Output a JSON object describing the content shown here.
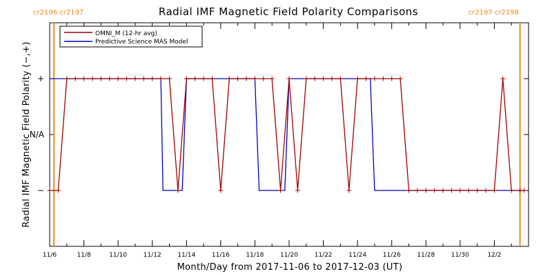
{
  "chart_data": {
    "type": "line",
    "title": "Radial IMF Magnetic Field Polarity Comparisons",
    "xlabel": "Month/Day from 2017-11-06 to 2017-12-03 (UT)",
    "ylabel": "Radial IMF Magnetic Field Polarity (−,+)",
    "x_range": [
      "2017-11-06T00:00",
      "2017-12-04T00:00"
    ],
    "ylim": [
      -2,
      2
    ],
    "x_tick_labels": [
      {
        "x": "2017-11-06T00:00",
        "label": "11/6"
      },
      {
        "x": "2017-11-08T00:00",
        "label": "11/8"
      },
      {
        "x": "2017-11-10T00:00",
        "label": "11/10"
      },
      {
        "x": "2017-11-12T00:00",
        "label": "11/12"
      },
      {
        "x": "2017-11-14T00:00",
        "label": "11/14"
      },
      {
        "x": "2017-11-16T00:00",
        "label": "11/16"
      },
      {
        "x": "2017-11-18T00:00",
        "label": "11/18"
      },
      {
        "x": "2017-11-20T00:00",
        "label": "11/20"
      },
      {
        "x": "2017-11-22T00:00",
        "label": "11/22"
      },
      {
        "x": "2017-11-24T00:00",
        "label": "11/24"
      },
      {
        "x": "2017-11-26T00:00",
        "label": "11/26"
      },
      {
        "x": "2017-11-28T00:00",
        "label": "11/28"
      },
      {
        "x": "2017-11-30T00:00",
        "label": "11/30"
      },
      {
        "x": "2017-12-02T00:00",
        "label": "12/2"
      }
    ],
    "y_tick_labels": [
      {
        "y": 1,
        "label": "+"
      },
      {
        "y": 0,
        "label": "N/A"
      },
      {
        "y": -1,
        "label": "−"
      }
    ],
    "carrington_markers": [
      {
        "x": "2017-11-06T06:00",
        "label": "cr2196 cr2197",
        "label_anchor": "left"
      },
      {
        "x": "2017-12-03T12:00",
        "label": "cr2197 cr2198",
        "label_anchor": "right"
      }
    ],
    "legend": {
      "position": "top-left"
    },
    "series": [
      {
        "name": "OMNI_M (12-hr avg)",
        "color": "#a00000",
        "marker": "plus",
        "points": [
          [
            "2017-11-06T00:00",
            -1
          ],
          [
            "2017-11-06T12:00",
            -1
          ],
          [
            "2017-11-07T00:00",
            1
          ],
          [
            "2017-11-07T12:00",
            1
          ],
          [
            "2017-11-08T00:00",
            1
          ],
          [
            "2017-11-08T12:00",
            1
          ],
          [
            "2017-11-09T00:00",
            1
          ],
          [
            "2017-11-09T12:00",
            1
          ],
          [
            "2017-11-10T00:00",
            1
          ],
          [
            "2017-11-10T12:00",
            1
          ],
          [
            "2017-11-11T00:00",
            1
          ],
          [
            "2017-11-11T12:00",
            1
          ],
          [
            "2017-11-12T00:00",
            1
          ],
          [
            "2017-11-12T12:00",
            1
          ],
          [
            "2017-11-13T00:00",
            1
          ],
          [
            "2017-11-13T12:00",
            -1
          ],
          [
            "2017-11-14T00:00",
            1
          ],
          [
            "2017-11-14T12:00",
            1
          ],
          [
            "2017-11-15T00:00",
            1
          ],
          [
            "2017-11-15T12:00",
            1
          ],
          [
            "2017-11-16T00:00",
            -1
          ],
          [
            "2017-11-16T12:00",
            1
          ],
          [
            "2017-11-17T00:00",
            1
          ],
          [
            "2017-11-17T12:00",
            1
          ],
          [
            "2017-11-18T00:00",
            1
          ],
          [
            "2017-11-18T12:00",
            1
          ],
          [
            "2017-11-19T00:00",
            1
          ],
          [
            "2017-11-19T12:00",
            -1
          ],
          [
            "2017-11-20T00:00",
            1
          ],
          [
            "2017-11-20T12:00",
            -1
          ],
          [
            "2017-11-21T00:00",
            1
          ],
          [
            "2017-11-21T12:00",
            1
          ],
          [
            "2017-11-22T00:00",
            1
          ],
          [
            "2017-11-22T12:00",
            1
          ],
          [
            "2017-11-23T00:00",
            1
          ],
          [
            "2017-11-23T12:00",
            -1
          ],
          [
            "2017-11-24T00:00",
            1
          ],
          [
            "2017-11-24T12:00",
            1
          ],
          [
            "2017-11-25T00:00",
            1
          ],
          [
            "2017-11-25T12:00",
            1
          ],
          [
            "2017-11-26T00:00",
            1
          ],
          [
            "2017-11-26T12:00",
            1
          ],
          [
            "2017-11-27T00:00",
            -1
          ],
          [
            "2017-11-27T12:00",
            -1
          ],
          [
            "2017-11-28T00:00",
            -1
          ],
          [
            "2017-11-28T12:00",
            -1
          ],
          [
            "2017-11-29T00:00",
            -1
          ],
          [
            "2017-11-29T12:00",
            -1
          ],
          [
            "2017-11-30T00:00",
            -1
          ],
          [
            "2017-11-30T12:00",
            -1
          ],
          [
            "2017-12-01T00:00",
            -1
          ],
          [
            "2017-12-01T12:00",
            -1
          ],
          [
            "2017-12-02T00:00",
            -1
          ],
          [
            "2017-12-02T12:00",
            1
          ],
          [
            "2017-12-03T00:00",
            -1
          ],
          [
            "2017-12-03T12:00",
            -1
          ],
          [
            "2017-12-03T18:00",
            -1
          ]
        ]
      },
      {
        "name": "Predictive Science MAS Model",
        "color": "#0000c0",
        "marker": "none",
        "points": [
          [
            "2017-11-06T00:00",
            1
          ],
          [
            "2017-11-12T12:00",
            1
          ],
          [
            "2017-11-12T15:00",
            -1
          ],
          [
            "2017-11-13T18:00",
            -1
          ],
          [
            "2017-11-14T00:00",
            1
          ],
          [
            "2017-11-18T00:00",
            1
          ],
          [
            "2017-11-18T06:00",
            -1
          ],
          [
            "2017-11-19T18:00",
            -1
          ],
          [
            "2017-11-20T00:00",
            1
          ],
          [
            "2017-11-24T18:00",
            1
          ],
          [
            "2017-11-25T00:00",
            -1
          ],
          [
            "2017-12-03T18:00",
            -1
          ]
        ]
      }
    ]
  }
}
